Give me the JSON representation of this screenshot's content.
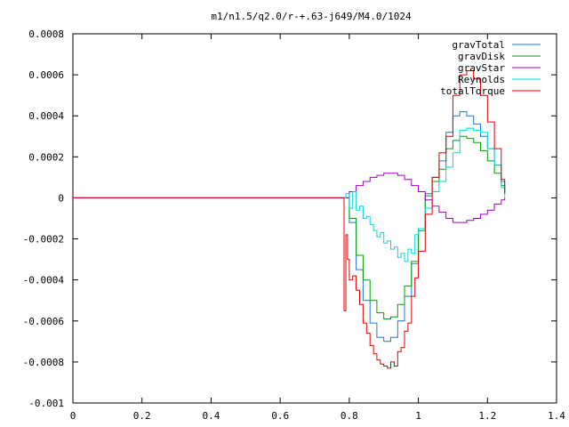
{
  "chart_data": {
    "type": "line",
    "title": "m1/n1.5/q2.0/r-+.63-j649/M4.0/1024",
    "xlabel": "",
    "ylabel": "",
    "xlim": [
      0,
      1.4
    ],
    "ylim": [
      -0.001,
      0.0008
    ],
    "x_ticks": [
      0,
      0.2,
      0.4,
      0.6,
      0.8,
      1,
      1.2,
      1.4
    ],
    "x_tick_labels": [
      "0",
      "0.2",
      "0.4",
      "0.6",
      "0.8",
      "1",
      "1.2",
      "1.4"
    ],
    "y_ticks": [
      -0.001,
      -0.0008,
      -0.0006,
      -0.0004,
      -0.0002,
      0,
      0.0002,
      0.0004,
      0.0006,
      0.0008
    ],
    "y_tick_labels": [
      "-0.001",
      "-0.0008",
      "-0.0006",
      "-0.0004",
      "-0.0002",
      "0",
      "0.0002",
      "0.0004",
      "0.0006",
      "0.0008"
    ],
    "grid": false,
    "legend_position": "top-right",
    "series": [
      {
        "name": "gravTotal",
        "color": "#1f77d0",
        "x": [
          0,
          0.78,
          0.8,
          0.82,
          0.84,
          0.86,
          0.88,
          0.9,
          0.92,
          0.94,
          0.96,
          0.98,
          1.0,
          1.02,
          1.04,
          1.06,
          1.08,
          1.1,
          1.12,
          1.14,
          1.16,
          1.18,
          1.2,
          1.22,
          1.24,
          1.25
        ],
        "y": [
          0,
          0,
          -0.00012,
          -0.00035,
          -0.0005,
          -0.00061,
          -0.00068,
          -0.0007,
          -0.00068,
          -0.0006,
          -0.00048,
          -0.00032,
          -0.00015,
          2e-05,
          0.0001,
          0.00018,
          0.00032,
          0.0004,
          0.00042,
          0.0004,
          0.00036,
          0.0003,
          0.00024,
          0.00016,
          8e-05,
          3e-05
        ]
      },
      {
        "name": "gravDisk",
        "color": "#00a000",
        "x": [
          0,
          0.78,
          0.8,
          0.82,
          0.84,
          0.86,
          0.88,
          0.9,
          0.92,
          0.94,
          0.96,
          0.98,
          1.0,
          1.02,
          1.04,
          1.06,
          1.08,
          1.1,
          1.12,
          1.14,
          1.16,
          1.18,
          1.2,
          1.22,
          1.24,
          1.25
        ],
        "y": [
          0,
          0,
          -0.0001,
          -0.00028,
          -0.0004,
          -0.0005,
          -0.00056,
          -0.00059,
          -0.00058,
          -0.00052,
          -0.00043,
          -0.00031,
          -0.00016,
          1e-05,
          8e-05,
          0.00014,
          0.00024,
          0.00028,
          0.0003,
          0.00029,
          0.00027,
          0.00023,
          0.00018,
          0.00012,
          6e-05,
          2e-05
        ]
      },
      {
        "name": "gravStar",
        "color": "#a000c0",
        "x": [
          0,
          0.78,
          0.8,
          0.82,
          0.84,
          0.86,
          0.88,
          0.9,
          0.92,
          0.94,
          0.96,
          0.98,
          1.0,
          1.02,
          1.04,
          1.06,
          1.08,
          1.1,
          1.12,
          1.14,
          1.16,
          1.18,
          1.2,
          1.22,
          1.24,
          1.25
        ],
        "y": [
          0,
          0,
          3e-05,
          6e-05,
          8e-05,
          0.0001,
          0.00011,
          0.00012,
          0.00012,
          0.00011,
          9e-05,
          6e-05,
          3e-05,
          -1e-05,
          -4e-05,
          -7e-05,
          -0.0001,
          -0.00012,
          -0.00012,
          -0.00011,
          -0.0001,
          -8e-05,
          -6e-05,
          -3e-05,
          -1e-05,
          0
        ]
      },
      {
        "name": "Reynolds",
        "color": "#00d8d8",
        "x": [
          0,
          0.78,
          0.79,
          0.8,
          0.81,
          0.82,
          0.83,
          0.84,
          0.85,
          0.86,
          0.87,
          0.88,
          0.89,
          0.9,
          0.91,
          0.92,
          0.93,
          0.94,
          0.95,
          0.96,
          0.97,
          0.98,
          0.99,
          1.0,
          1.02,
          1.04,
          1.06,
          1.08,
          1.1,
          1.12,
          1.14,
          1.16,
          1.18,
          1.2,
          1.22,
          1.24,
          1.25
        ],
        "y": [
          0,
          0,
          2e-05,
          -5e-05,
          3e-05,
          -6e-05,
          -4e-05,
          -0.0001,
          -9e-05,
          -0.00013,
          -0.00016,
          -0.00019,
          -0.00017,
          -0.00022,
          -0.00021,
          -0.00025,
          -0.00024,
          -0.00029,
          -0.00027,
          -0.00031,
          -0.00025,
          -0.00027,
          -0.00018,
          -0.00015,
          -5e-05,
          3e-05,
          8e-05,
          0.00015,
          0.00022,
          0.00033,
          0.00034,
          0.00033,
          0.00032,
          0.00024,
          0.00016,
          5e-05,
          0
        ]
      },
      {
        "name": "totalTorque",
        "color": "#e00000",
        "x": [
          0,
          0.78,
          0.785,
          0.79,
          0.795,
          0.8,
          0.81,
          0.82,
          0.83,
          0.84,
          0.85,
          0.86,
          0.87,
          0.88,
          0.89,
          0.9,
          0.91,
          0.92,
          0.93,
          0.94,
          0.95,
          0.96,
          0.97,
          0.98,
          0.99,
          1.0,
          1.02,
          1.04,
          1.06,
          1.08,
          1.1,
          1.12,
          1.14,
          1.16,
          1.18,
          1.2,
          1.22,
          1.24,
          1.25
        ],
        "y": [
          0,
          0,
          -0.00055,
          -0.00018,
          -0.0003,
          -0.0004,
          -0.00038,
          -0.00045,
          -0.00052,
          -0.00061,
          -0.00066,
          -0.00072,
          -0.00076,
          -0.00079,
          -0.00081,
          -0.00082,
          -0.00083,
          -0.0008,
          -0.00082,
          -0.00075,
          -0.00073,
          -0.00065,
          -0.00061,
          -0.00048,
          -0.00039,
          -0.00026,
          -8e-05,
          0.0001,
          0.00022,
          0.0003,
          0.0005,
          0.0006,
          0.00062,
          0.00058,
          0.0005,
          0.00037,
          0.00024,
          9e-05,
          2e-05
        ]
      }
    ]
  }
}
